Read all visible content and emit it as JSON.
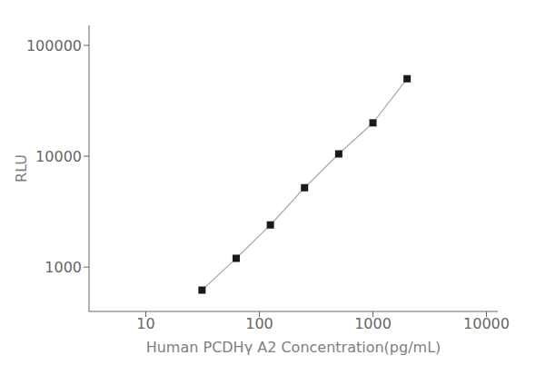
{
  "chart_data": {
    "type": "line",
    "x": [
      31.25,
      62.5,
      125,
      250,
      500,
      1000,
      2000
    ],
    "values": [
      620,
      1200,
      2400,
      5200,
      10500,
      20000,
      50000
    ],
    "color": "#aaaaaa",
    "colors": [
      "#1a1a1a",
      "#1a1a1a",
      "#1a1a1a",
      "#1a1a1a",
      "#1a1a1a",
      "#1a1a1a",
      "#1a1a1a"
    ],
    "marker": "square",
    "xlabel": "Human  PCDHγ A2  Concentration(pg/mL)",
    "ylabel": "RLU",
    "log": true,
    "xlim": [
      3.1622776601683795,
      12589.254117941662
    ],
    "ylim": [
      398.1071705534973,
      151356.12484362087
    ],
    "xticks": [
      10,
      100,
      1000,
      10000
    ],
    "yticks": [
      1000,
      10000,
      100000
    ],
    "grid": false
  }
}
